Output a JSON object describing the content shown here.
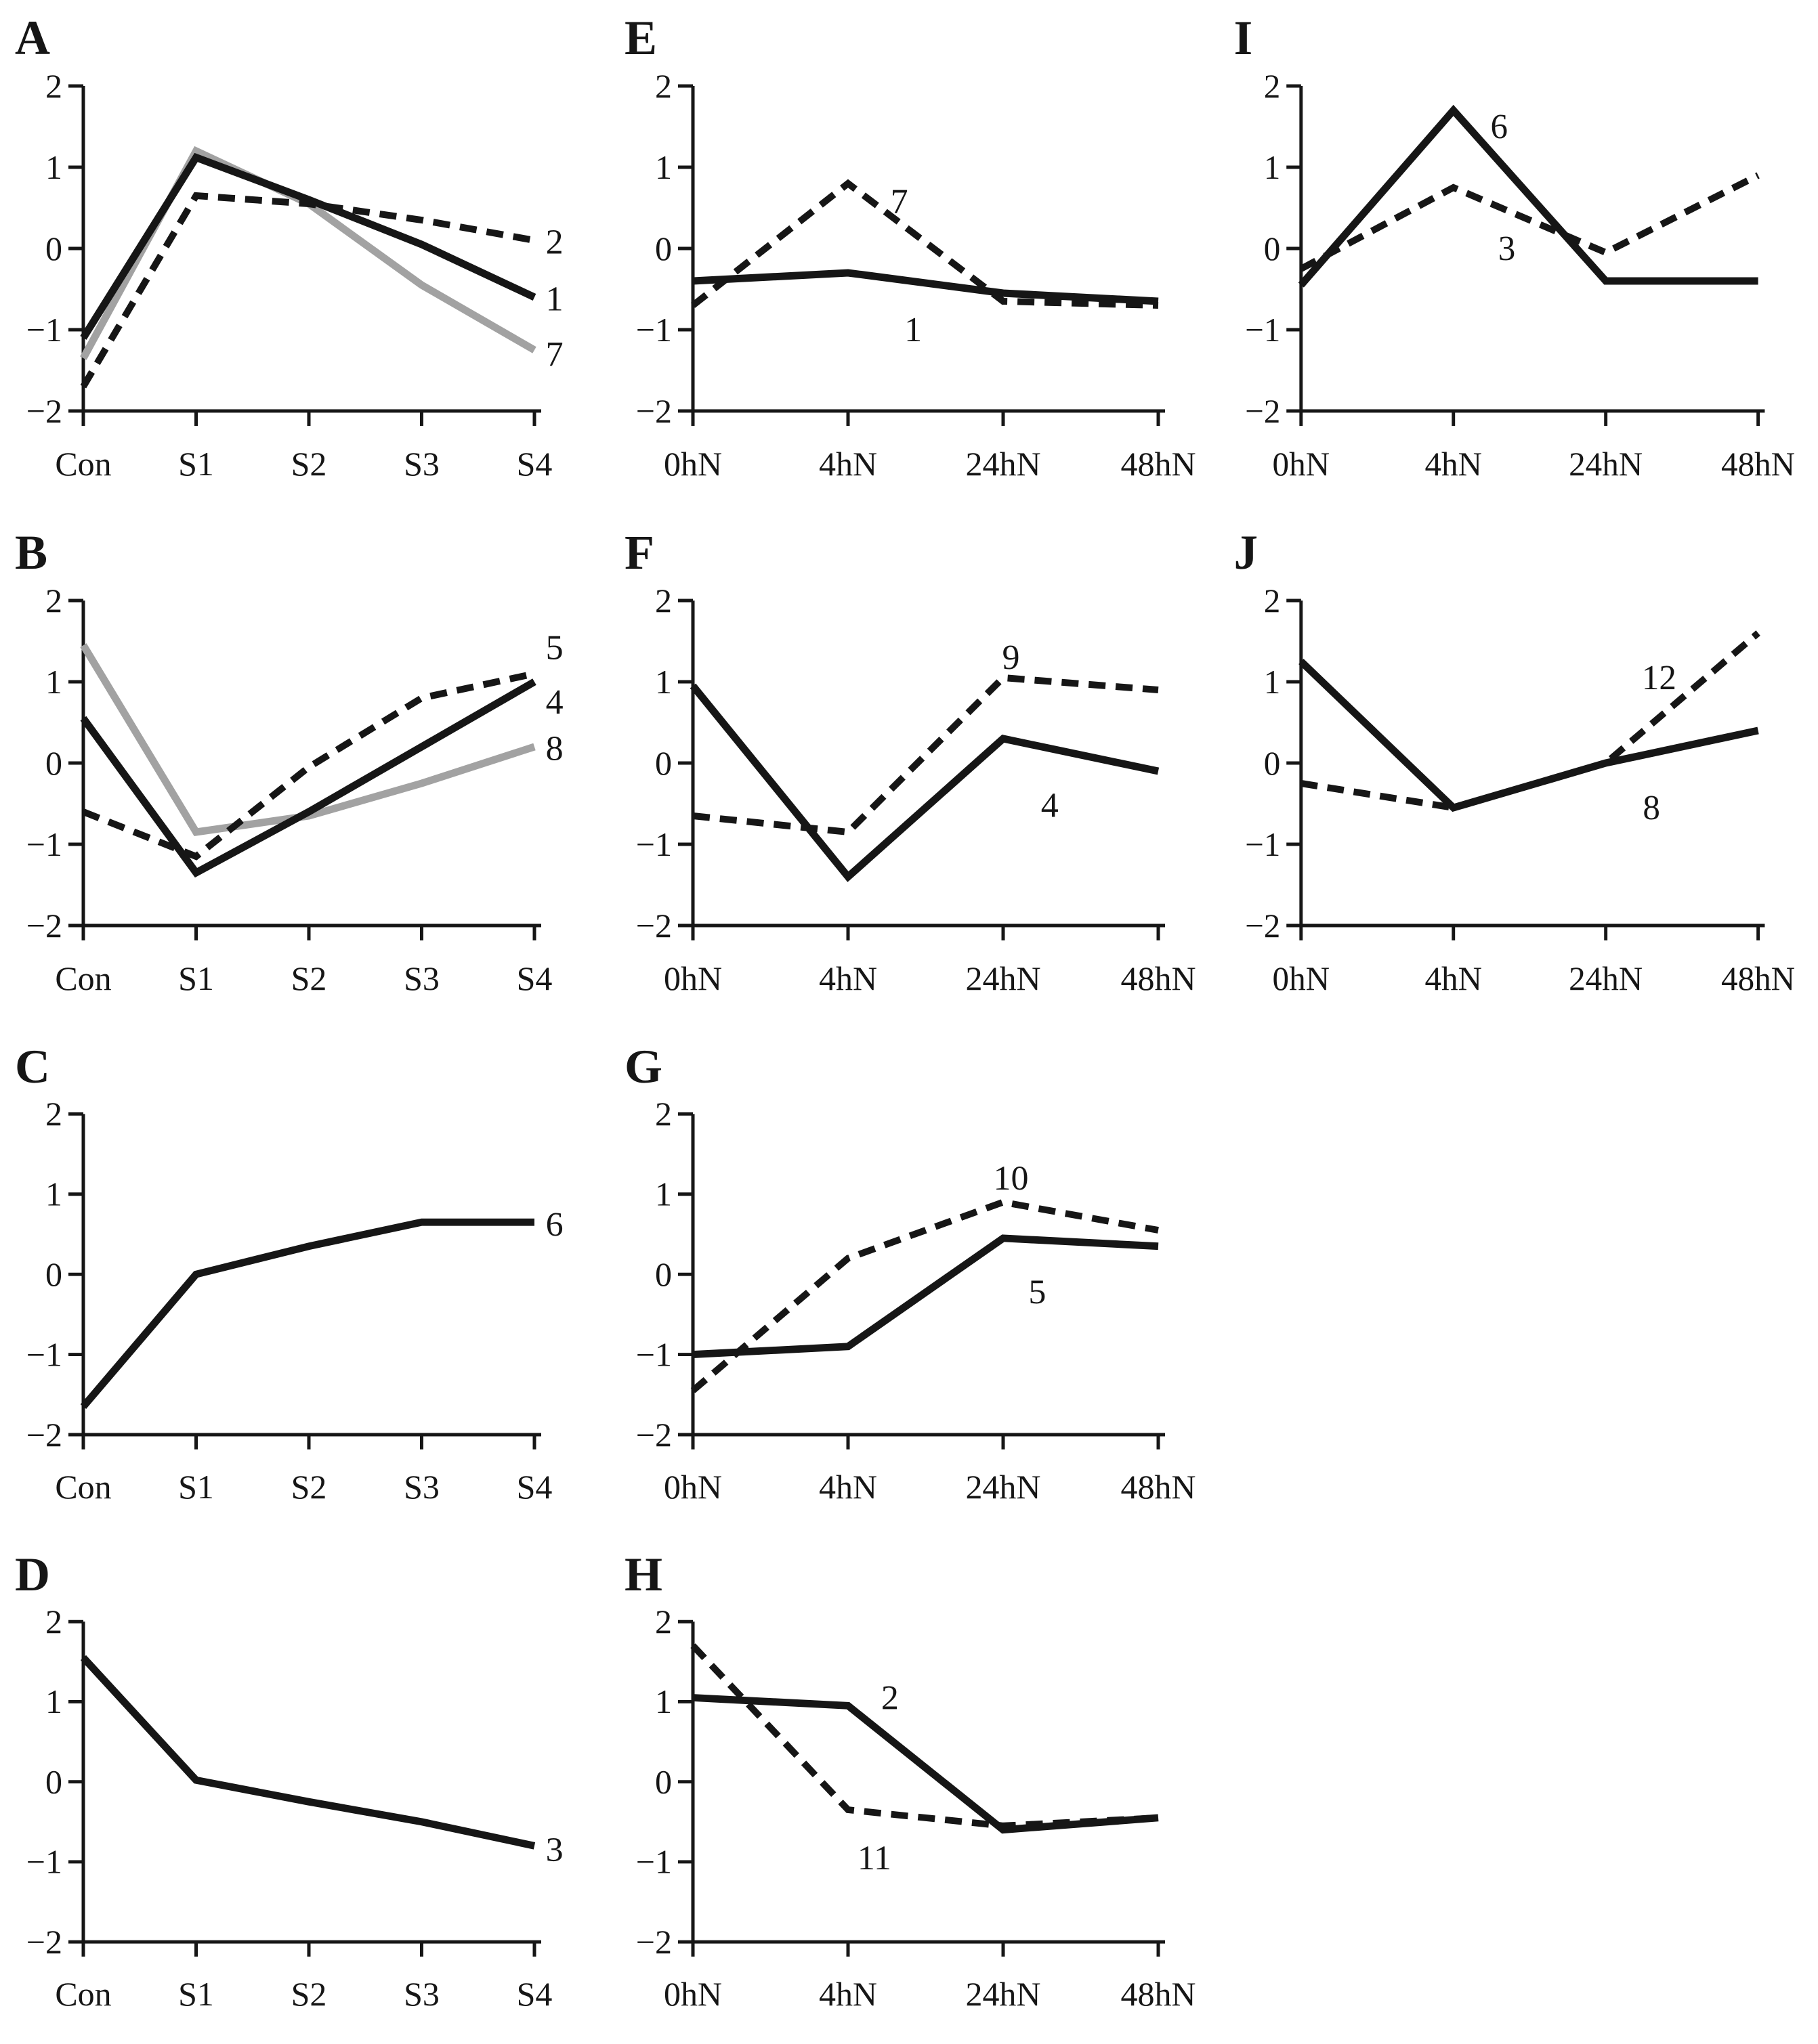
{
  "figure": {
    "background": "#ffffff",
    "text_color": "#161616",
    "colors": {
      "black_line": "#161616",
      "gray_line": "#a2a2a2"
    },
    "grid": {
      "columns": [
        900,
        900,
        884
      ],
      "rows": [
        760,
        760,
        750,
        749
      ]
    },
    "axis": {
      "ylim": [
        -2,
        2
      ],
      "yticks": [
        2,
        1,
        0,
        -1,
        -2
      ],
      "ytick_labels": [
        "2",
        "1",
        "0",
        "−1",
        "−2"
      ],
      "grid_lines": false,
      "legend": "none (series labeled by numbers next to lines)"
    }
  },
  "chart_data": [
    {
      "panel": "A",
      "type": "line",
      "col": 0,
      "row": 0,
      "categories": [
        "Con",
        "S1",
        "S2",
        "S3",
        "S4"
      ],
      "series": [
        {
          "name": "7",
          "style": "gray",
          "values": [
            -1.35,
            1.2,
            0.55,
            -0.45,
            -1.25
          ],
          "label_at": [
            4.1,
            -1.3
          ],
          "label_anchor": "start"
        },
        {
          "name": "1",
          "style": "solid",
          "values": [
            -1.1,
            1.12,
            0.6,
            0.05,
            -0.6
          ],
          "label_at": [
            4.1,
            -0.62
          ],
          "label_anchor": "start"
        },
        {
          "name": "2",
          "style": "dashed",
          "values": [
            -1.7,
            0.65,
            0.55,
            0.35,
            0.1
          ],
          "label_at": [
            4.1,
            0.08
          ],
          "label_anchor": "start"
        }
      ]
    },
    {
      "panel": "B",
      "type": "line",
      "col": 0,
      "row": 1,
      "categories": [
        "Con",
        "S1",
        "S2",
        "S3",
        "S4"
      ],
      "series": [
        {
          "name": "8",
          "style": "gray",
          "values": [
            1.45,
            -0.85,
            -0.65,
            -0.25,
            0.2
          ],
          "label_at": [
            4.1,
            0.18
          ],
          "label_anchor": "start"
        },
        {
          "name": "4",
          "style": "solid",
          "values": [
            0.55,
            -1.35,
            -0.6,
            0.2,
            1.0
          ],
          "label_at": [
            4.1,
            0.75
          ],
          "label_anchor": "start"
        },
        {
          "name": "5",
          "style": "dashed",
          "values": [
            -0.6,
            -1.15,
            -0.05,
            0.8,
            1.1
          ],
          "label_at": [
            4.1,
            1.42
          ],
          "label_anchor": "start"
        }
      ]
    },
    {
      "panel": "C",
      "type": "line",
      "col": 0,
      "row": 2,
      "categories": [
        "Con",
        "S1",
        "S2",
        "S3",
        "S4"
      ],
      "series": [
        {
          "name": "6",
          "style": "solid",
          "values": [
            -1.65,
            0.0,
            0.35,
            0.65,
            0.65
          ],
          "label_at": [
            4.1,
            0.62
          ],
          "label_anchor": "start"
        }
      ]
    },
    {
      "panel": "D",
      "type": "line",
      "col": 0,
      "row": 3,
      "categories": [
        "Con",
        "S1",
        "S2",
        "S3",
        "S4"
      ],
      "series": [
        {
          "name": "3",
          "style": "solid",
          "values": [
            1.55,
            0.02,
            -0.25,
            -0.5,
            -0.8
          ],
          "label_at": [
            4.1,
            -0.85
          ],
          "label_anchor": "start"
        }
      ]
    },
    {
      "panel": "E",
      "type": "line",
      "col": 1,
      "row": 0,
      "categories": [
        "0hN",
        "4hN",
        "24hN",
        "48hN"
      ],
      "series": [
        {
          "name": "1",
          "style": "solid",
          "values": [
            -0.4,
            -0.3,
            -0.55,
            -0.65
          ],
          "label_at": [
            1.42,
            -1.0
          ],
          "label_anchor": "middle"
        },
        {
          "name": "7",
          "style": "dashed",
          "values": [
            -0.7,
            0.8,
            -0.65,
            -0.7
          ],
          "label_at": [
            1.33,
            0.58
          ],
          "label_anchor": "middle"
        }
      ]
    },
    {
      "panel": "F",
      "type": "line",
      "col": 1,
      "row": 1,
      "categories": [
        "0hN",
        "4hN",
        "24hN",
        "48hN"
      ],
      "series": [
        {
          "name": "4",
          "style": "solid",
          "values": [
            0.95,
            -1.4,
            0.3,
            -0.1
          ],
          "label_at": [
            2.3,
            -0.52
          ],
          "label_anchor": "middle"
        },
        {
          "name": "9",
          "style": "dashed",
          "values": [
            -0.65,
            -0.85,
            1.05,
            0.9
          ],
          "label_at": [
            2.05,
            1.3
          ],
          "label_anchor": "middle"
        }
      ]
    },
    {
      "panel": "G",
      "type": "line",
      "col": 1,
      "row": 2,
      "categories": [
        "0hN",
        "4hN",
        "24hN",
        "48hN"
      ],
      "series": [
        {
          "name": "5",
          "style": "solid",
          "values": [
            -1.0,
            -0.9,
            0.45,
            0.35
          ],
          "label_at": [
            2.22,
            -0.22
          ],
          "label_anchor": "middle"
        },
        {
          "name": "10",
          "style": "dashed",
          "values": [
            -1.45,
            0.2,
            0.9,
            0.55
          ],
          "label_at": [
            2.05,
            1.2
          ],
          "label_anchor": "middle"
        }
      ]
    },
    {
      "panel": "H",
      "type": "line",
      "col": 1,
      "row": 3,
      "categories": [
        "0hN",
        "4hN",
        "24hN",
        "48hN"
      ],
      "series": [
        {
          "name": "2",
          "style": "solid",
          "values": [
            1.05,
            0.95,
            -0.6,
            -0.45
          ],
          "label_at": [
            1.27,
            1.05
          ],
          "label_anchor": "middle"
        },
        {
          "name": "11",
          "style": "dashed",
          "values": [
            1.7,
            -0.35,
            -0.55,
            -0.45
          ],
          "label_at": [
            1.17,
            -0.95
          ],
          "label_anchor": "middle"
        }
      ]
    },
    {
      "panel": "I",
      "type": "line",
      "col": 2,
      "row": 0,
      "categories": [
        "0hN",
        "4hN",
        "24hN",
        "48hN"
      ],
      "series": [
        {
          "name": "6",
          "style": "solid",
          "values": [
            -0.45,
            1.7,
            -0.4,
            -0.4
          ],
          "label_at": [
            1.3,
            1.5
          ],
          "label_anchor": "middle"
        },
        {
          "name": "3",
          "style": "dashed",
          "values": [
            -0.25,
            0.75,
            -0.05,
            0.9
          ],
          "label_at": [
            1.35,
            0.0
          ],
          "label_anchor": "middle"
        }
      ]
    },
    {
      "panel": "J",
      "type": "line",
      "col": 2,
      "row": 1,
      "categories": [
        "0hN",
        "4hN",
        "24hN",
        "48hN"
      ],
      "series": [
        {
          "name": "8",
          "style": "solid",
          "values": [
            1.25,
            -0.55,
            0.0,
            0.4
          ],
          "label_at": [
            2.3,
            -0.55
          ],
          "label_anchor": "middle"
        },
        {
          "name": "12",
          "style": "dashed",
          "values": [
            -0.25,
            -0.55,
            0.0,
            1.6
          ],
          "label_at": [
            2.35,
            1.05
          ],
          "label_anchor": "middle"
        }
      ]
    }
  ]
}
